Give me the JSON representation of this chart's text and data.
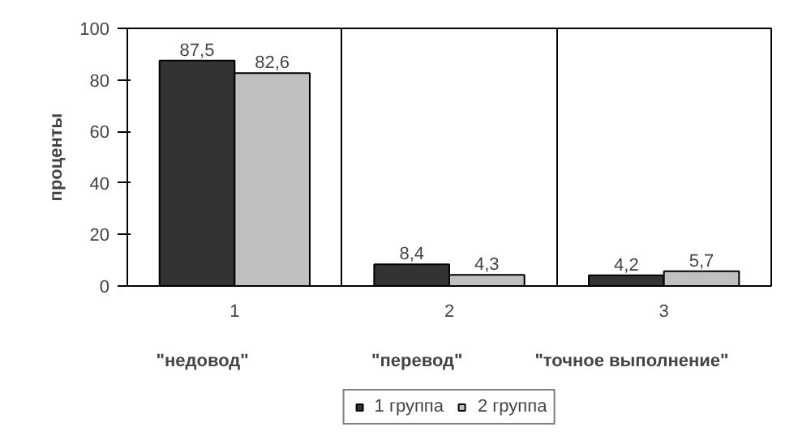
{
  "chart_data": {
    "type": "bar",
    "ylabel": "проценты",
    "categories": [
      "1",
      "2",
      "3"
    ],
    "series": [
      {
        "name": "1 группа",
        "color": "#333333",
        "values": [
          87.5,
          8.4,
          4.2
        ],
        "value_labels": [
          "87,5",
          "8,4",
          "4,2"
        ]
      },
      {
        "name": "2 группа",
        "color": "#c0c0c0",
        "values": [
          82.6,
          4.3,
          5.7
        ],
        "value_labels": [
          "82,6",
          "4,3",
          "5,7"
        ]
      }
    ],
    "ylim": [
      0,
      100
    ],
    "yticks": [
      0,
      20,
      40,
      60,
      80,
      100
    ],
    "grid": "x",
    "legend": "bottom",
    "annotations": [
      "\"недовод\"",
      "\"перевод\"",
      "\"точное выполнение\""
    ]
  }
}
